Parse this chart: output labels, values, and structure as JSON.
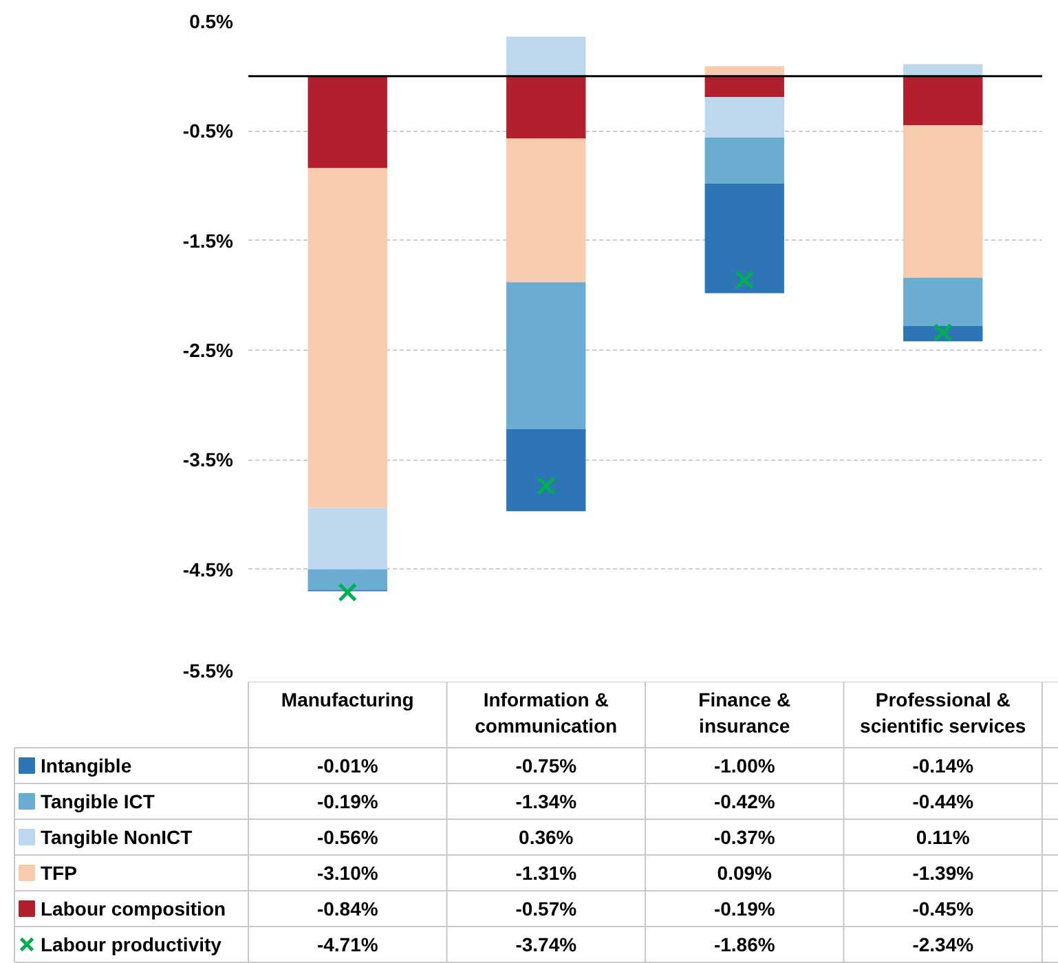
{
  "chart_data": {
    "type": "bar",
    "stacked": true,
    "categories": [
      "Manufacturing",
      "Information & communication",
      "Finance & insurance",
      "Professional & scientific services"
    ],
    "ylim": [
      -5.5,
      0.5
    ],
    "legend": "bottom left",
    "yticks": [
      {
        "value": 0.5,
        "label": "0.5%"
      },
      {
        "value": -0.5,
        "label": "-0.5%"
      },
      {
        "value": -1.5,
        "label": "-1.5%"
      },
      {
        "value": -2.5,
        "label": "-2.5%"
      },
      {
        "value": -3.5,
        "label": "-3.5%"
      },
      {
        "value": -4.5,
        "label": "-4.5%"
      },
      {
        "value": -5.5,
        "label": "-5.5%"
      }
    ],
    "grid": "y",
    "ref_lines": [
      {
        "axis": "y",
        "value": 0,
        "color": "#000000"
      }
    ],
    "series": [
      {
        "name": "Labour composition",
        "color": "#b2202e",
        "values": [
          -0.84,
          -0.57,
          -0.19,
          -0.45
        ],
        "value_labels": [
          "-0.84%",
          "-0.57%",
          "-0.19%",
          "-0.45%"
        ]
      },
      {
        "name": "TFP",
        "color": "#f7cbad",
        "values": [
          -3.1,
          -1.31,
          0.09,
          -1.39
        ],
        "value_labels": [
          "-3.10%",
          "-1.31%",
          "0.09%",
          "-1.39%"
        ]
      },
      {
        "name": "Tangible NonICT",
        "color": "#bdd7ee",
        "values": [
          -0.56,
          0.36,
          -0.37,
          0.11
        ],
        "value_labels": [
          "-0.56%",
          "0.36%",
          "-0.37%",
          "0.11%"
        ]
      },
      {
        "name": "Tangible ICT",
        "color": "#6badd1",
        "values": [
          -0.19,
          -1.34,
          -0.42,
          -0.44
        ],
        "value_labels": [
          "-0.19%",
          "-1.34%",
          "-0.42%",
          "-0.44%"
        ]
      },
      {
        "name": "Intangible",
        "color": "#2e75b6",
        "values": [
          -0.01,
          -0.75,
          -1.0,
          -0.14
        ],
        "value_labels": [
          "-0.01%",
          "-0.75%",
          "-1.00%",
          "-0.14%"
        ]
      },
      {
        "name": "Labour productivity",
        "type": "scatter",
        "marker": "cross",
        "color": "#00b050",
        "values": [
          -4.71,
          -3.74,
          -1.86,
          -2.34
        ],
        "value_labels": [
          "-4.71%",
          "-3.74%",
          "-1.86%",
          "-2.34%"
        ]
      }
    ]
  }
}
